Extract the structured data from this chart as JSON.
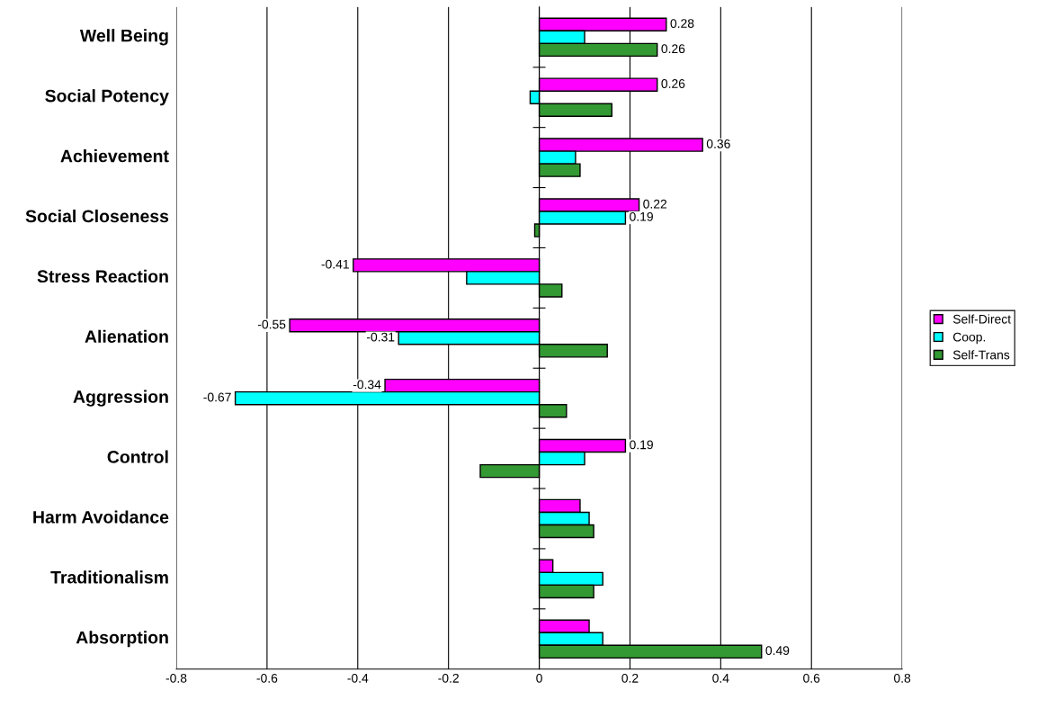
{
  "chart_data": {
    "type": "bar",
    "orientation": "horizontal",
    "categories": [
      "Well Being",
      "Social Potency",
      "Achievement",
      "Social Closeness",
      "Stress Reaction",
      "Alienation",
      "Aggression",
      "Control",
      "Harm Avoidance",
      "Traditionalism",
      "Absorption"
    ],
    "series": [
      {
        "name": "Self-Direct",
        "color": "#ff00ff",
        "values": [
          0.28,
          0.26,
          0.36,
          0.22,
          -0.41,
          -0.55,
          -0.34,
          0.19,
          0.09,
          0.03,
          0.11
        ],
        "value_labels": [
          "0.28",
          "0.26",
          "0.36",
          "0.22",
          "-0.41",
          "-0.55",
          "-0.34",
          "0.19",
          null,
          null,
          null
        ]
      },
      {
        "name": "Coop.",
        "color": "#00ffff",
        "values": [
          0.1,
          -0.02,
          0.08,
          0.19,
          -0.16,
          -0.31,
          -0.67,
          0.1,
          0.11,
          0.14,
          0.14
        ],
        "value_labels": [
          null,
          null,
          null,
          "0.19",
          null,
          "-0.31",
          "-0.67",
          null,
          null,
          null,
          null
        ]
      },
      {
        "name": "Self-Trans",
        "color": "#339933",
        "values": [
          0.26,
          0.16,
          0.09,
          -0.01,
          0.05,
          0.15,
          0.06,
          -0.13,
          0.12,
          0.12,
          0.49
        ],
        "value_labels": [
          "0.26",
          null,
          null,
          null,
          null,
          null,
          null,
          null,
          null,
          null,
          "0.49"
        ]
      }
    ],
    "xlim": [
      -0.8,
      0.8
    ],
    "xticks": [
      -0.8,
      -0.6,
      -0.4,
      -0.2,
      0,
      0.2,
      0.4,
      0.6,
      0.8
    ],
    "grid": "x",
    "legend": "right"
  }
}
